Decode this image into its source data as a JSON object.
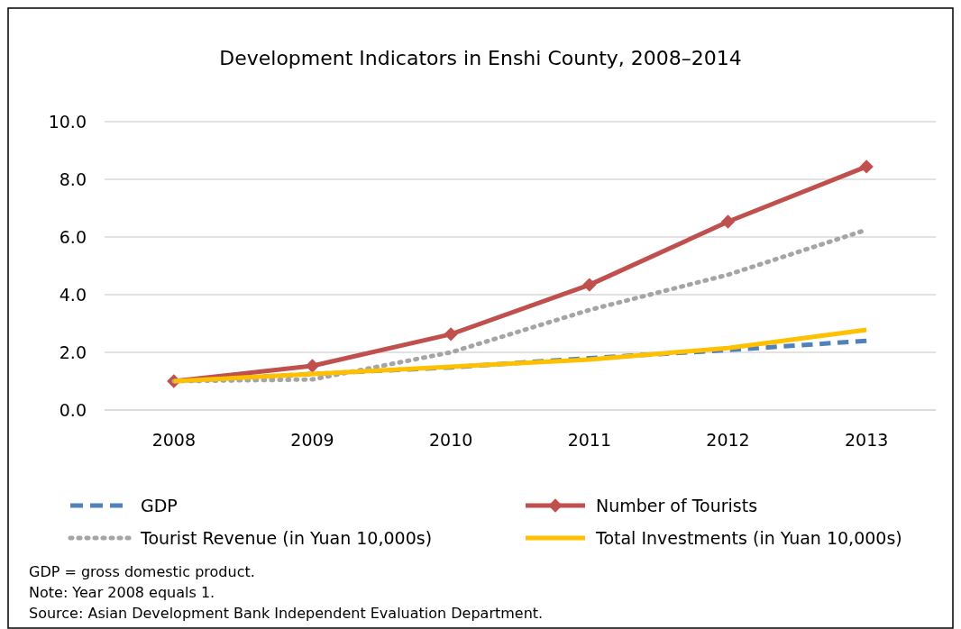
{
  "chart_data": {
    "type": "line",
    "title": "Development Indicators in Enshi County, 2008–2014",
    "categories": [
      "2008",
      "2009",
      "2010",
      "2011",
      "2012",
      "2013"
    ],
    "series": [
      {
        "name": "GDP",
        "color": "#4f81bd",
        "line_style": "dashed",
        "marker": "none",
        "values": [
          1.0,
          1.25,
          1.48,
          1.8,
          2.08,
          2.4
        ]
      },
      {
        "name": "Number of Tourists",
        "color": "#c0504d",
        "line_style": "solid",
        "marker": "diamond",
        "values": [
          1.0,
          1.53,
          2.63,
          4.34,
          6.53,
          8.44
        ]
      },
      {
        "name": "Tourist Revenue (in Yuan 10,000s)",
        "color": "#a5a5a5",
        "line_style": "dotted",
        "marker": "none",
        "values": [
          1.0,
          1.06,
          2.0,
          3.47,
          4.69,
          6.25
        ]
      },
      {
        "name": "Total Investments (in Yuan 10,000s)",
        "color": "#ffc000",
        "line_style": "solid",
        "marker": "none",
        "values": [
          1.0,
          1.25,
          1.5,
          1.75,
          2.15,
          2.78
        ]
      }
    ],
    "ylim": [
      0,
      10
    ],
    "yticks": [
      {
        "value": 0,
        "label": "0.0"
      },
      {
        "value": 2,
        "label": "2.0"
      },
      {
        "value": 4,
        "label": "4.0"
      },
      {
        "value": 6,
        "label": "6.0"
      },
      {
        "value": 8,
        "label": "8.0"
      },
      {
        "value": 10,
        "label": "10.0"
      }
    ],
    "grid": "y",
    "legend": "bottom",
    "annotations": [
      "GDP = gross domestic product.",
      "Note: Year 2008 equals 1.",
      "Source: Asian Development Bank Independent Evaluation Department."
    ]
  }
}
